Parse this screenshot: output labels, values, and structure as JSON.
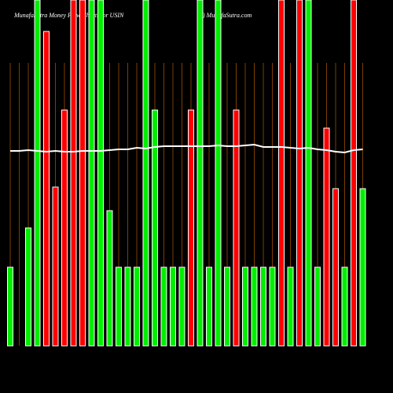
{
  "chart_data": {
    "type": "bar",
    "title_left": "MunafaSutra  Money Flow  Charts for USIN",
    "title_right": ") MunafaSutra.com",
    "ylim": [
      0,
      440
    ],
    "values": [
      100,
      0,
      150,
      440,
      400,
      202,
      300,
      440,
      440,
      440,
      440,
      172,
      100,
      100,
      100,
      440,
      300,
      100,
      100,
      100,
      300,
      440,
      100,
      440,
      100,
      300,
      100,
      100,
      100,
      100,
      440,
      100,
      440,
      440,
      100,
      277,
      200,
      100,
      440,
      200
    ],
    "colors": [
      "#00ee00",
      "#00ee00",
      "#00ee00",
      "#00ee00",
      "#ff0000",
      "#ff0000",
      "#ff0000",
      "#ff0000",
      "#ff0000",
      "#00ee00",
      "#00ee00",
      "#00ee00",
      "#00ee00",
      "#00ee00",
      "#00ee00",
      "#00ee00",
      "#00ee00",
      "#00ee00",
      "#00ee00",
      "#00ee00",
      "#ff0000",
      "#00ee00",
      "#00ee00",
      "#00ee00",
      "#00ee00",
      "#ff0000",
      "#00ee00",
      "#00ee00",
      "#00ee00",
      "#00ee00",
      "#ff0000",
      "#00ee00",
      "#ff0000",
      "#00ee00",
      "#00ee00",
      "#ff0000",
      "#ff0000",
      "#00ee00",
      "#ff0000",
      "#00ee00"
    ],
    "line_values": [
      248,
      248,
      249,
      248,
      247,
      248,
      247,
      247,
      248,
      248,
      248,
      249,
      250,
      250,
      252,
      251,
      253,
      254,
      254,
      254,
      254,
      254,
      254,
      255,
      254,
      254,
      255,
      256,
      253,
      253,
      253,
      252,
      251,
      252,
      250,
      249,
      247,
      246,
      249,
      250
    ],
    "line_color": "#ffffff"
  }
}
